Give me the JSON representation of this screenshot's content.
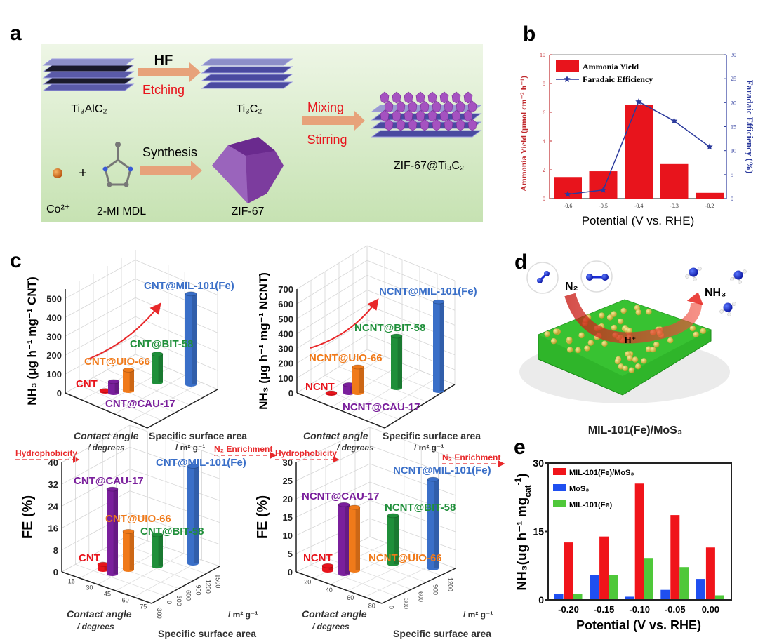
{
  "panel_labels": {
    "a": "a",
    "b": "b",
    "c": "c",
    "d": "d",
    "e": "e"
  },
  "panel_a": {
    "hf": "HF",
    "etching": "Etching",
    "ti3alc2": "Ti₃AlC₂",
    "ti3c2": "Ti₃C₂",
    "mixing": "Mixing",
    "stirring": "Stirring",
    "product": "ZIF-67@Ti₃C₂",
    "synthesis": "Synthesis",
    "plus": "+",
    "cobalt": "Co²⁺",
    "linker": "2-MI MDL",
    "zif67": "ZIF-67",
    "colors": {
      "background": "#cfe6bf",
      "arrow": "#e7a27a",
      "red_text": "#e8141c",
      "sheet": "#5a5aa8",
      "crystal": "#8b4aa6"
    }
  },
  "panel_d": {
    "n2": "N₂",
    "nh3": "NH₃",
    "h_plus": "H⁺",
    "caption": "MIL-101(Fe)/MoS₃",
    "colors": {
      "sheet": "#2fb52a",
      "particles": "#d8c64a",
      "molecule": "#1a2bd6",
      "arrow": "#e8302a"
    }
  },
  "chart_data": [
    {
      "id": "b",
      "type": "bar+line",
      "categories": [
        "-0.6",
        "-0.5",
        "-0.4",
        "-0.3",
        "-0.2"
      ],
      "xlabel": "Potential (V vs. RHE)",
      "ylabel": "Ammonia Yield (μmol cm⁻² h⁻¹)",
      "ylabel_right": "Faradaic Efficiency (%)",
      "ylim": [
        0,
        10
      ],
      "yticks": [
        "0",
        "2",
        "4",
        "6",
        "8",
        "10"
      ],
      "ylim_right": [
        0,
        30
      ],
      "yticks_right": [
        "0",
        "5",
        "10",
        "15",
        "20",
        "25",
        "30"
      ],
      "legend_position": "top-left",
      "series": [
        {
          "name": "Ammonia Yield",
          "type": "bar",
          "axis": "left",
          "color": "#e8141c",
          "values": [
            1.5,
            1.9,
            6.5,
            2.4,
            0.4
          ]
        },
        {
          "name": "Faradaic Efficiency",
          "type": "line",
          "marker": "star",
          "axis": "right",
          "color": "#2b3a9c",
          "values": [
            0.9,
            1.8,
            20.2,
            16.2,
            10.8
          ]
        }
      ]
    },
    {
      "id": "e",
      "type": "bar",
      "categories": [
        "-0.20",
        "-0.15",
        "-0.10",
        "-0.05",
        "0.00"
      ],
      "xlabel": "Potential (V vs. RHE)",
      "ylabel": "NH₃(ug h⁻¹ mg",
      "ylabel_sub": "cat",
      "ylabel_sup": "-1",
      "ylabel_close": ")",
      "ylim": [
        0,
        30
      ],
      "yticks": [
        "0",
        "15",
        "30"
      ],
      "legend_position": "top-left",
      "series": [
        {
          "name": "MoS₃",
          "color": "#1f4ff0",
          "values": [
            1.3,
            5.5,
            0.7,
            2.2,
            4.6
          ]
        },
        {
          "name": "MIL-101(Fe)/MoS₃",
          "color": "#f0141a",
          "values": [
            12.6,
            13.9,
            25.5,
            18.6,
            11.5
          ]
        },
        {
          "name": "MIL-101(Fe)",
          "color": "#4fc83a",
          "values": [
            1.3,
            5.5,
            9.2,
            7.2,
            1.0
          ]
        }
      ],
      "legend_order": [
        1,
        0,
        2
      ]
    },
    {
      "id": "c1",
      "type": "bar3d",
      "ylabel": "NH₃ (μg h⁻¹ mg⁻¹ CNT)",
      "ylim": [
        0,
        550
      ],
      "yticks": [
        "0",
        "100",
        "200",
        "300",
        "400",
        "500"
      ],
      "x_axis_label": [
        "Contact angle",
        "/ degrees"
      ],
      "z_axis_label": [
        "Specific surface area",
        "/ m² g⁻¹"
      ],
      "x_annotation": "Hydrophobicity",
      "z_annotation": "N₂ Enrichment",
      "categories": [
        "CNT",
        "CNT@CAU-17",
        "CNT@UIO-66",
        "CNT@BIT-58",
        "CNT@MIL-101(Fe)"
      ],
      "values": [
        5,
        60,
        110,
        150,
        480
      ],
      "colors": [
        "#e8141c",
        "#7a1f9c",
        "#f07a1a",
        "#1f8f3a",
        "#3a6fc8"
      ]
    },
    {
      "id": "c2",
      "type": "bar3d",
      "ylabel": "NH₃ (μg h⁻¹ mg⁻¹ NCNT)",
      "ylim": [
        0,
        700
      ],
      "yticks": [
        "0",
        "100",
        "200",
        "300",
        "400",
        "500",
        "600",
        "700"
      ],
      "x_axis_label": [
        "Contact angle",
        "/ degrees"
      ],
      "z_axis_label": [
        "Specific surface area",
        "/ m² g⁻¹"
      ],
      "x_annotation": "Hydrophobicity",
      "z_annotation": "N₂ Enrichment",
      "categories": [
        "NCNT",
        "NCNT@CAU-17",
        "NCNT@UIO-66",
        "NCNT@BIT-58",
        "NCNT@MIL-101(Fe)"
      ],
      "values": [
        5,
        55,
        175,
        350,
        600
      ],
      "colors": [
        "#e8141c",
        "#7a1f9c",
        "#f07a1a",
        "#1f8f3a",
        "#3a6fc8"
      ]
    },
    {
      "id": "c3",
      "type": "bar3d",
      "ylabel": "FE (%)",
      "ylim": [
        0,
        40
      ],
      "yticks": [
        "0",
        "8",
        "16",
        "24",
        "32",
        "40"
      ],
      "x_axis_label": [
        "Contact angle",
        "/ degrees"
      ],
      "z_axis_label": [
        "Specific surface area",
        "/ m² g⁻¹"
      ],
      "xticks": [
        "15",
        "30",
        "45",
        "60",
        "75"
      ],
      "zticks": [
        "-300",
        "0",
        "300",
        "600",
        "900",
        "1200",
        "1500"
      ],
      "categories": [
        "CNT",
        "CNT@CAU-17",
        "CNT@UIO-66",
        "CNT@BIT-58",
        "CNT@MIL-101(Fe)"
      ],
      "values": [
        2,
        31,
        14,
        11.5,
        35.5
      ],
      "colors": [
        "#e8141c",
        "#7a1f9c",
        "#f07a1a",
        "#1f8f3a",
        "#3a6fc8"
      ]
    },
    {
      "id": "c4",
      "type": "bar3d",
      "ylabel": "FE (%)",
      "ylim": [
        0,
        30
      ],
      "yticks": [
        "0",
        "5",
        "10",
        "15",
        "20",
        "25",
        "30"
      ],
      "x_axis_label": [
        "Contact angle",
        "/ degrees"
      ],
      "z_axis_label": [
        "Specific surface area",
        "/ m² g⁻¹"
      ],
      "xticks": [
        "20",
        "40",
        "60",
        "80"
      ],
      "zticks": [
        "0",
        "300",
        "600",
        "900",
        "1200"
      ],
      "categories": [
        "NCNT",
        "NCNT@CAU-17",
        "NCNT@UIO-66",
        "NCNT@BIT-58",
        "NCNT@MIL-101(Fe)"
      ],
      "values": [
        1.3,
        19,
        17.3,
        13.3,
        24.4
      ],
      "colors": [
        "#e8141c",
        "#7a1f9c",
        "#f07a1a",
        "#1f8f3a",
        "#3a6fc8"
      ]
    }
  ]
}
